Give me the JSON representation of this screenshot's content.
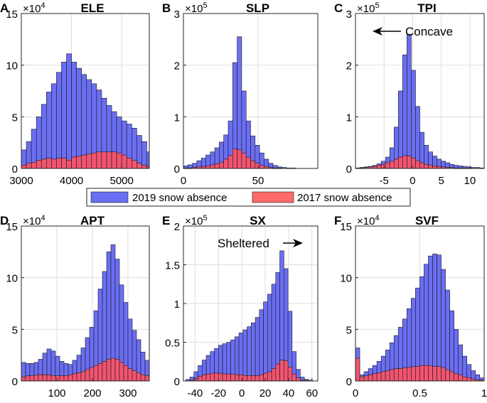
{
  "colors": {
    "series_2019": "#6a6ef3",
    "series_2017": "#f2546f",
    "legend_2017_swatch": "#ff6a6a"
  },
  "legend": {
    "items": [
      "2019 snow absence",
      "2017 snow absence"
    ]
  },
  "chart_data": [
    {
      "type": "bar",
      "letter": "A",
      "title": "ELE",
      "scale_text": "×10",
      "scale_exp": "4",
      "xlim": [
        3000,
        5550
      ],
      "ylim": [
        0,
        15
      ],
      "xticks": [
        3000,
        4000,
        5000
      ],
      "xtick_labels": [
        "3000",
        "4000",
        "5000"
      ],
      "yticks": [
        0,
        5,
        10,
        15
      ],
      "ytick_labels": [
        "0",
        "5",
        "10",
        "15"
      ],
      "bin_start": 3000,
      "bin_width": 100,
      "series": [
        {
          "name": "2019 snow absence",
          "values": [
            1.8,
            2.6,
            3.8,
            5.0,
            6.2,
            7.4,
            8.2,
            9.3,
            10.3,
            11.1,
            10.3,
            9.7,
            9.1,
            8.6,
            8.2,
            7.6,
            6.8,
            6.1,
            5.5,
            5.0,
            4.6,
            4.3,
            3.9,
            3.2,
            2.6,
            1.6
          ]
        },
        {
          "name": "2017 snow absence",
          "values": [
            0.3,
            0.5,
            0.6,
            0.8,
            0.9,
            1.0,
            0.9,
            1.0,
            1.0,
            0.8,
            1.1,
            1.2,
            1.3,
            1.4,
            1.5,
            1.6,
            1.6,
            1.6,
            1.6,
            1.5,
            1.3,
            1.0,
            0.8,
            0.5,
            0.3,
            0.2
          ]
        }
      ]
    },
    {
      "type": "bar",
      "letter": "B",
      "title": "SLP",
      "scale_text": "×10",
      "scale_exp": "5",
      "xlim": [
        0,
        90
      ],
      "ylim": [
        0,
        3
      ],
      "xticks": [
        0,
        50
      ],
      "xtick_labels": [
        "0",
        "50"
      ],
      "yticks": [
        0,
        1,
        2,
        3
      ],
      "ytick_labels": [
        "0",
        "1",
        "2",
        "3"
      ],
      "bin_start": 0,
      "bin_width": 3,
      "series": [
        {
          "name": "2019 snow absence",
          "values": [
            0.05,
            0.07,
            0.1,
            0.15,
            0.2,
            0.26,
            0.32,
            0.4,
            0.51,
            0.65,
            0.92,
            2.05,
            2.55,
            1.5,
            0.92,
            0.63,
            0.45,
            0.3,
            0.18,
            0.1,
            0.06,
            0.03,
            0.02,
            0.01,
            0.01
          ]
        },
        {
          "name": "2017 snow absence",
          "values": [
            0.01,
            0.01,
            0.02,
            0.03,
            0.04,
            0.05,
            0.07,
            0.09,
            0.12,
            0.18,
            0.25,
            0.38,
            0.36,
            0.3,
            0.22,
            0.15,
            0.1,
            0.06,
            0.04,
            0.02,
            0.01,
            0.01,
            0.0,
            0.0,
            0.0
          ]
        }
      ]
    },
    {
      "type": "bar",
      "letter": "C",
      "title": "TPI",
      "scale_text": "×10",
      "scale_exp": "5",
      "xlim": [
        -10,
        12.5
      ],
      "ylim": [
        0,
        3
      ],
      "xticks": [
        -5,
        0,
        5,
        10
      ],
      "xtick_labels": [
        "-5",
        "0",
        "5",
        "10"
      ],
      "yticks": [
        0,
        1,
        2,
        3
      ],
      "ytick_labels": [
        "0",
        "1",
        "2",
        "3"
      ],
      "bin_start": -10,
      "bin_width": 0.75,
      "annotation": "Concave",
      "series": [
        {
          "name": "2019 snow absence",
          "values": [
            0.01,
            0.02,
            0.03,
            0.04,
            0.06,
            0.09,
            0.14,
            0.22,
            0.4,
            0.8,
            1.5,
            2.2,
            2.6,
            1.9,
            1.2,
            0.7,
            0.45,
            0.32,
            0.24,
            0.18,
            0.14,
            0.11,
            0.08,
            0.06,
            0.05,
            0.04,
            0.03,
            0.02,
            0.02,
            0.01
          ]
        },
        {
          "name": "2017 snow absence",
          "values": [
            0.01,
            0.01,
            0.02,
            0.03,
            0.04,
            0.06,
            0.08,
            0.11,
            0.14,
            0.18,
            0.22,
            0.25,
            0.24,
            0.2,
            0.15,
            0.11,
            0.08,
            0.06,
            0.05,
            0.04,
            0.03,
            0.02,
            0.02,
            0.01,
            0.01,
            0.01,
            0.01,
            0.0,
            0.0,
            0.0
          ]
        }
      ]
    },
    {
      "type": "bar",
      "letter": "D",
      "title": "APT",
      "scale_text": "×10",
      "scale_exp": "4",
      "xlim": [
        0,
        360
      ],
      "ylim": [
        0,
        15
      ],
      "xticks": [
        100,
        200,
        300
      ],
      "xtick_labels": [
        "100",
        "200",
        "300"
      ],
      "yticks": [
        0,
        5,
        10,
        15
      ],
      "ytick_labels": [
        "0",
        "5",
        "10",
        "15"
      ],
      "bin_start": 0,
      "bin_width": 12,
      "series": [
        {
          "name": "2019 snow absence",
          "values": [
            1.8,
            1.7,
            1.7,
            1.8,
            2.1,
            2.7,
            3.1,
            2.9,
            2.4,
            1.9,
            1.7,
            1.6,
            2.0,
            2.5,
            3.2,
            4.2,
            5.2,
            6.8,
            8.9,
            10.6,
            12.5,
            13.2,
            11.8,
            9.3,
            7.6,
            6.0,
            4.9,
            4.0,
            2.8,
            2.0
          ]
        },
        {
          "name": "2017 snow absence",
          "values": [
            0.4,
            0.5,
            0.5,
            0.6,
            0.6,
            0.6,
            0.6,
            0.5,
            0.5,
            0.5,
            0.5,
            0.6,
            0.7,
            0.8,
            0.9,
            1.1,
            1.3,
            1.5,
            1.7,
            1.9,
            2.1,
            2.2,
            2.1,
            1.8,
            1.5,
            1.2,
            1.0,
            0.8,
            0.6,
            0.5
          ]
        }
      ]
    },
    {
      "type": "bar",
      "letter": "E",
      "title": "SX",
      "scale_text": "×10",
      "scale_exp": "5",
      "xlim": [
        -50,
        65
      ],
      "ylim": [
        0,
        2
      ],
      "xticks": [
        -40,
        -20,
        0,
        20,
        40,
        60
      ],
      "xtick_labels": [
        "-40",
        "-20",
        "0",
        "20",
        "40",
        "60"
      ],
      "yticks": [
        0,
        0.5,
        1,
        1.5,
        2
      ],
      "ytick_labels": [
        "0",
        "0.5",
        "1",
        "1.5",
        "2"
      ],
      "bin_start": -48,
      "bin_width": 3.5,
      "annotation": "Sheltered",
      "series": [
        {
          "name": "2019 snow absence",
          "values": [
            0.02,
            0.05,
            0.12,
            0.2,
            0.27,
            0.33,
            0.38,
            0.42,
            0.46,
            0.48,
            0.5,
            0.53,
            0.57,
            0.62,
            0.66,
            0.7,
            0.75,
            0.82,
            0.92,
            1.02,
            1.12,
            1.25,
            1.4,
            1.68,
            1.45,
            0.9,
            0.38,
            0.15,
            0.05,
            0.02,
            0.01
          ]
        },
        {
          "name": "2017 snow absence",
          "values": [
            0.0,
            0.01,
            0.03,
            0.06,
            0.08,
            0.09,
            0.1,
            0.1,
            0.1,
            0.09,
            0.09,
            0.09,
            0.08,
            0.08,
            0.07,
            0.07,
            0.07,
            0.07,
            0.08,
            0.1,
            0.12,
            0.16,
            0.22,
            0.27,
            0.26,
            0.18,
            0.09,
            0.04,
            0.01,
            0.01,
            0.0
          ]
        }
      ]
    },
    {
      "type": "bar",
      "letter": "F",
      "title": "SVF",
      "scale_text": "×10",
      "scale_exp": "4",
      "xlim": [
        0,
        1
      ],
      "ylim": [
        0,
        15
      ],
      "xticks": [
        0,
        0.5,
        1
      ],
      "xtick_labels": [
        "0",
        "0.5",
        "1"
      ],
      "yticks": [
        0,
        5,
        10,
        15
      ],
      "ytick_labels": [
        "0",
        "5",
        "10",
        "15"
      ],
      "bin_start": 0,
      "bin_width": 0.0333,
      "series": [
        {
          "name": "2019 snow absence",
          "values": [
            3.2,
            0.6,
            0.9,
            1.2,
            1.5,
            1.9,
            2.4,
            3.0,
            3.7,
            4.4,
            5.2,
            6.0,
            7.0,
            8.0,
            9.0,
            10.1,
            11.3,
            12.1,
            12.3,
            12.2,
            10.8,
            8.8,
            6.8,
            5.0,
            3.5,
            2.4,
            1.6,
            1.0,
            0.6,
            0.3
          ]
        },
        {
          "name": "2017 snow absence",
          "values": [
            2.2,
            0.4,
            0.5,
            0.6,
            0.7,
            0.8,
            0.9,
            1.0,
            1.1,
            1.2,
            1.2,
            1.3,
            1.3,
            1.4,
            1.4,
            1.5,
            1.5,
            1.5,
            1.4,
            1.4,
            1.3,
            1.1,
            0.9,
            0.7,
            0.6,
            0.4,
            0.3,
            0.2,
            0.1,
            0.1
          ]
        }
      ]
    }
  ]
}
